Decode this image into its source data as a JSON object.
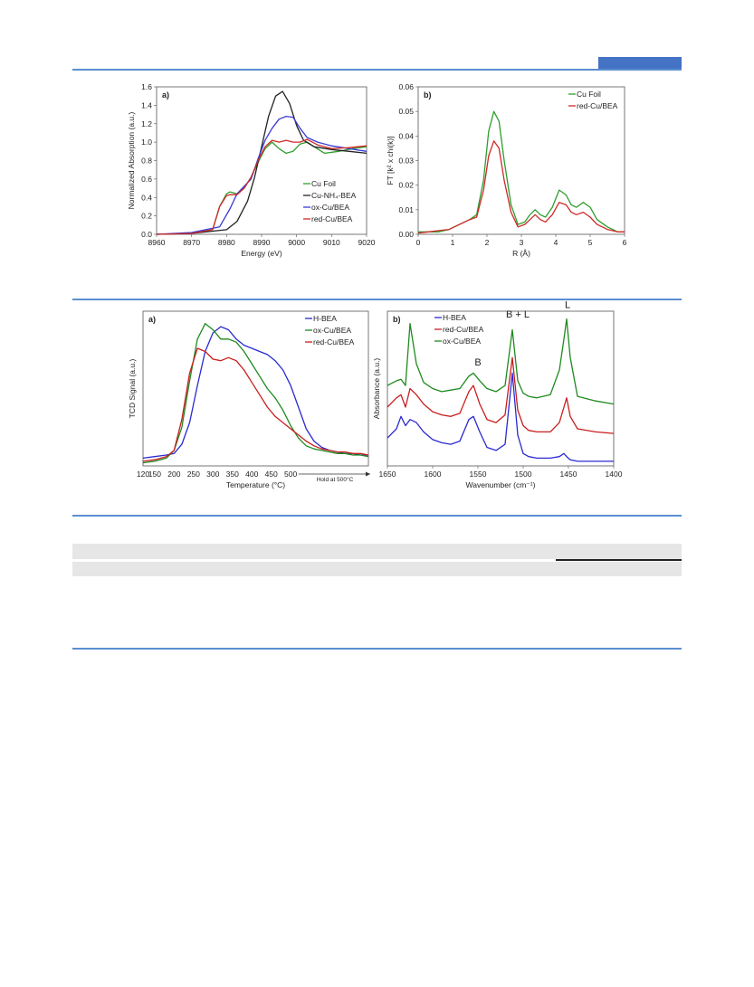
{
  "page": {
    "accent_color": "#4472c4",
    "rule_color": "#5b8fd0"
  },
  "chart_data": [
    {
      "id": "xanes",
      "type": "line",
      "panel_label": "a)",
      "xlabel": "Energy (eV)",
      "ylabel": "Normalized Absorption (a.u.)",
      "xlim": [
        8960,
        9020
      ],
      "ylim": [
        0,
        1.6
      ],
      "xticks": [
        "8960",
        "8970",
        "8980",
        "8990",
        "9000",
        "9010",
        "9020"
      ],
      "yticks": [
        "0.0",
        "0.2",
        "0.4",
        "0.6",
        "0.8",
        "1.0",
        "1.2",
        "1.4",
        "1.6"
      ],
      "legend": "bottom-right",
      "grid": false,
      "series": [
        {
          "name": "Cu Foil",
          "color": "#2e9e2e",
          "x": [
            8960,
            8970,
            8976,
            8978,
            8980,
            8981,
            8983,
            8985,
            8987,
            8989,
            8991,
            8993,
            8995,
            8997,
            8999,
            9001,
            9003,
            9005,
            9008,
            9012,
            9016,
            9020
          ],
          "y": [
            0.0,
            0.01,
            0.05,
            0.3,
            0.44,
            0.46,
            0.44,
            0.5,
            0.62,
            0.78,
            0.93,
            1.0,
            0.93,
            0.88,
            0.9,
            0.98,
            1.0,
            0.95,
            0.88,
            0.9,
            0.93,
            0.95
          ]
        },
        {
          "name": "Cu-NH₄-BEA",
          "color": "#222222",
          "x": [
            8960,
            8970,
            8980,
            8983,
            8986,
            8988,
            8990,
            8992,
            8994,
            8996,
            8998,
            9000,
            9002,
            9005,
            9010,
            9015,
            9020
          ],
          "y": [
            0.0,
            0.01,
            0.05,
            0.14,
            0.36,
            0.62,
            0.95,
            1.28,
            1.5,
            1.55,
            1.42,
            1.18,
            1.02,
            0.95,
            0.92,
            0.9,
            0.88
          ]
        },
        {
          "name": "ox-Cu/BEA",
          "color": "#3a3ad8",
          "x": [
            8960,
            8970,
            8978,
            8981,
            8983,
            8985,
            8987,
            8989,
            8991,
            8993,
            8995,
            8997,
            8999,
            9001,
            9003,
            9006,
            9010,
            9015,
            9020
          ],
          "y": [
            0.0,
            0.02,
            0.08,
            0.28,
            0.44,
            0.52,
            0.6,
            0.82,
            1.02,
            1.15,
            1.25,
            1.28,
            1.27,
            1.15,
            1.05,
            1.0,
            0.96,
            0.93,
            0.9
          ]
        },
        {
          "name": "red-Cu/BEA",
          "color": "#d02828",
          "x": [
            8960,
            8970,
            8976,
            8978,
            8980,
            8981,
            8983,
            8985,
            8987,
            8989,
            8991,
            8993,
            8995,
            8997,
            8999,
            9001,
            9003,
            9006,
            9010,
            9015,
            9020
          ],
          "y": [
            0.0,
            0.01,
            0.05,
            0.3,
            0.42,
            0.43,
            0.43,
            0.5,
            0.62,
            0.8,
            0.95,
            1.02,
            1.0,
            1.02,
            1.0,
            1.0,
            1.03,
            0.97,
            0.93,
            0.94,
            0.96
          ]
        }
      ]
    },
    {
      "id": "exafs",
      "type": "line",
      "panel_label": "b)",
      "xlabel": "R (Å)",
      "ylabel": "FT [k² x chi(k)]",
      "xlim": [
        0,
        6
      ],
      "ylim": [
        0,
        0.06
      ],
      "xticks": [
        "0",
        "1",
        "2",
        "3",
        "4",
        "5",
        "6"
      ],
      "yticks": [
        "0.00",
        "0.01",
        "0.02",
        "0.03",
        "0.04",
        "0.05",
        "0.06"
      ],
      "legend": "top-right",
      "grid": false,
      "series": [
        {
          "name": "Cu Foil",
          "color": "#2e9e2e",
          "x": [
            0,
            0.3,
            0.6,
            0.9,
            1.2,
            1.5,
            1.7,
            1.9,
            2.05,
            2.2,
            2.35,
            2.5,
            2.7,
            2.9,
            3.1,
            3.25,
            3.4,
            3.55,
            3.7,
            3.9,
            4.1,
            4.3,
            4.45,
            4.6,
            4.8,
            5.0,
            5.2,
            5.5,
            5.8,
            6.0
          ],
          "y": [
            0.001,
            0.001,
            0.001,
            0.002,
            0.004,
            0.006,
            0.008,
            0.022,
            0.042,
            0.05,
            0.046,
            0.03,
            0.012,
            0.004,
            0.005,
            0.008,
            0.01,
            0.008,
            0.007,
            0.011,
            0.018,
            0.016,
            0.012,
            0.011,
            0.013,
            0.011,
            0.006,
            0.003,
            0.001,
            0.001
          ]
        },
        {
          "name": "red-Cu/BEA",
          "color": "#d02828",
          "x": [
            0,
            0.3,
            0.6,
            0.9,
            1.2,
            1.5,
            1.7,
            1.9,
            2.05,
            2.2,
            2.35,
            2.5,
            2.7,
            2.9,
            3.1,
            3.25,
            3.4,
            3.55,
            3.7,
            3.9,
            4.1,
            4.3,
            4.45,
            4.6,
            4.8,
            5.0,
            5.2,
            5.5,
            5.8,
            6.0
          ],
          "y": [
            0.0005,
            0.001,
            0.0015,
            0.002,
            0.004,
            0.006,
            0.007,
            0.018,
            0.032,
            0.038,
            0.035,
            0.022,
            0.009,
            0.003,
            0.004,
            0.006,
            0.008,
            0.006,
            0.005,
            0.008,
            0.013,
            0.012,
            0.009,
            0.008,
            0.009,
            0.007,
            0.004,
            0.002,
            0.001,
            0.001
          ]
        }
      ]
    },
    {
      "id": "tpd",
      "type": "line",
      "panel_label": "a)",
      "xlabel": "Temperature (°C)",
      "ylabel": "TCD Signal (a.u.)",
      "xlim": [
        120,
        700
      ],
      "ylim": [
        0,
        1.0
      ],
      "xticks": [
        "120",
        "150",
        "200",
        "250",
        "300",
        "350",
        "400",
        "450",
        "500"
      ],
      "arrow_label": "Hold at 500°C",
      "legend": "top-right",
      "grid": false,
      "series": [
        {
          "name": "H-BEA",
          "color": "#2a2ad0",
          "x": [
            120,
            150,
            180,
            200,
            220,
            240,
            260,
            280,
            300,
            320,
            340,
            360,
            380,
            400,
            420,
            440,
            460,
            480,
            500,
            520,
            540,
            560,
            580,
            600,
            620,
            640,
            660,
            680,
            700
          ],
          "y": [
            0.05,
            0.06,
            0.07,
            0.08,
            0.14,
            0.28,
            0.52,
            0.74,
            0.86,
            0.9,
            0.88,
            0.82,
            0.78,
            0.76,
            0.74,
            0.72,
            0.68,
            0.62,
            0.52,
            0.38,
            0.24,
            0.16,
            0.12,
            0.1,
            0.09,
            0.08,
            0.08,
            0.07,
            0.07
          ]
        },
        {
          "name": "ox-Cu/BEA",
          "color": "#1f8a1f",
          "x": [
            120,
            150,
            180,
            200,
            220,
            240,
            260,
            280,
            300,
            320,
            340,
            360,
            380,
            400,
            420,
            440,
            460,
            480,
            500,
            520,
            540,
            560,
            580,
            600,
            620,
            640,
            660,
            680,
            700
          ],
          "y": [
            0.02,
            0.03,
            0.05,
            0.1,
            0.25,
            0.55,
            0.82,
            0.92,
            0.88,
            0.82,
            0.82,
            0.8,
            0.74,
            0.66,
            0.58,
            0.5,
            0.44,
            0.36,
            0.26,
            0.18,
            0.13,
            0.11,
            0.1,
            0.09,
            0.08,
            0.08,
            0.07,
            0.07,
            0.06
          ]
        },
        {
          "name": "red-Cu/BEA",
          "color": "#c81e1e",
          "x": [
            120,
            150,
            180,
            200,
            220,
            240,
            260,
            280,
            300,
            320,
            340,
            360,
            380,
            400,
            420,
            440,
            460,
            480,
            500,
            520,
            540,
            560,
            580,
            600,
            620,
            640,
            660,
            680,
            700
          ],
          "y": [
            0.03,
            0.04,
            0.06,
            0.1,
            0.3,
            0.6,
            0.76,
            0.74,
            0.69,
            0.68,
            0.7,
            0.68,
            0.62,
            0.54,
            0.46,
            0.38,
            0.32,
            0.28,
            0.24,
            0.2,
            0.16,
            0.13,
            0.11,
            0.1,
            0.09,
            0.09,
            0.08,
            0.08,
            0.07
          ]
        }
      ]
    },
    {
      "id": "ftir",
      "type": "line",
      "panel_label": "b)",
      "xlabel": "Wavenumber (cm⁻¹)",
      "ylabel": "Absorbance (a.u.)",
      "xlim": [
        1650,
        1400
      ],
      "ylim": [
        0,
        1.0
      ],
      "xticks": [
        "1650",
        "1600",
        "1550",
        "1500",
        "1450",
        "1400"
      ],
      "annotations": [
        "B",
        "B + L",
        "L"
      ],
      "legend": "top-left",
      "grid": false,
      "series": [
        {
          "name": "H-BEA",
          "color": "#2a2ad0",
          "x": [
            1650,
            1640,
            1635,
            1630,
            1625,
            1618,
            1610,
            1600,
            1590,
            1580,
            1570,
            1560,
            1555,
            1548,
            1540,
            1530,
            1520,
            1512,
            1506,
            1500,
            1494,
            1485,
            1470,
            1460,
            1455,
            1452,
            1448,
            1440,
            1420,
            1400
          ],
          "y": [
            0.18,
            0.24,
            0.32,
            0.26,
            0.3,
            0.28,
            0.22,
            0.17,
            0.15,
            0.14,
            0.16,
            0.3,
            0.32,
            0.22,
            0.12,
            0.1,
            0.14,
            0.6,
            0.2,
            0.08,
            0.06,
            0.05,
            0.05,
            0.06,
            0.08,
            0.06,
            0.04,
            0.03,
            0.03,
            0.03
          ]
        },
        {
          "name": "red-Cu/BEA",
          "color": "#c81e1e",
          "x": [
            1650,
            1640,
            1635,
            1630,
            1625,
            1618,
            1610,
            1600,
            1590,
            1580,
            1570,
            1560,
            1555,
            1548,
            1540,
            1530,
            1520,
            1512,
            1506,
            1500,
            1494,
            1485,
            1470,
            1460,
            1455,
            1452,
            1448,
            1440,
            1420,
            1400
          ],
          "y": [
            0.38,
            0.44,
            0.46,
            0.38,
            0.5,
            0.46,
            0.4,
            0.35,
            0.33,
            0.32,
            0.34,
            0.48,
            0.52,
            0.4,
            0.3,
            0.28,
            0.33,
            0.7,
            0.36,
            0.26,
            0.23,
            0.22,
            0.22,
            0.28,
            0.38,
            0.44,
            0.32,
            0.24,
            0.22,
            0.21
          ]
        },
        {
          "name": "ox-Cu/BEA",
          "color": "#1f8a1f",
          "x": [
            1650,
            1640,
            1635,
            1630,
            1625,
            1618,
            1610,
            1600,
            1590,
            1580,
            1570,
            1560,
            1555,
            1548,
            1540,
            1530,
            1520,
            1512,
            1506,
            1500,
            1494,
            1485,
            1470,
            1460,
            1455,
            1452,
            1448,
            1440,
            1420,
            1400
          ],
          "y": [
            0.52,
            0.55,
            0.56,
            0.52,
            0.92,
            0.66,
            0.54,
            0.5,
            0.48,
            0.49,
            0.5,
            0.58,
            0.6,
            0.55,
            0.5,
            0.48,
            0.52,
            0.88,
            0.55,
            0.47,
            0.45,
            0.44,
            0.46,
            0.62,
            0.82,
            0.95,
            0.7,
            0.45,
            0.42,
            0.4
          ]
        }
      ]
    }
  ]
}
